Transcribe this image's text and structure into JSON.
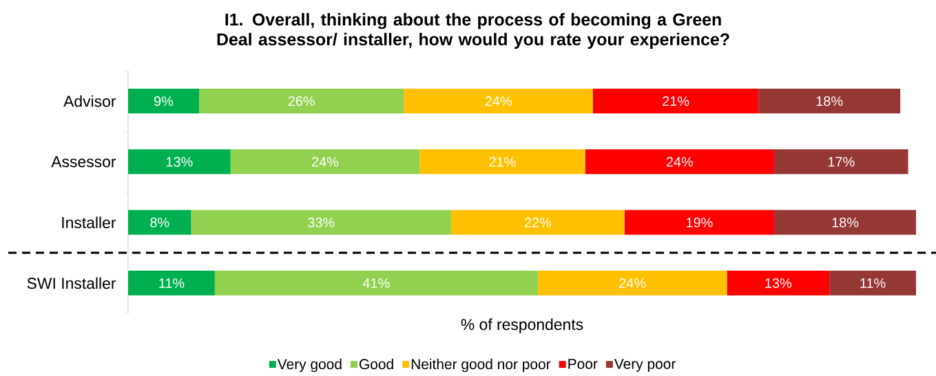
{
  "chart_data": {
    "type": "bar",
    "orientation": "horizontal",
    "stacked": true,
    "title": "I1. Overall, thinking about the process of becoming a Green Deal assessor/ installer, how would you rate your experience?",
    "xlabel": "% of respondents",
    "categories": [
      "Advisor",
      "Assessor",
      "Installer",
      "SWI Installer"
    ],
    "xlim": [
      0,
      100
    ],
    "legend": "bottom",
    "series": [
      {
        "name": "Very good",
        "color": "#00b050",
        "values": [
          9,
          13,
          8,
          11
        ],
        "value_labels": [
          "9%",
          "13%",
          "8%",
          "11%"
        ]
      },
      {
        "name": "Good",
        "color": "#92d050",
        "values": [
          26,
          24,
          33,
          41
        ],
        "value_labels": [
          "26%",
          "24%",
          "33%",
          "41%"
        ]
      },
      {
        "name": "Neither good nor poor",
        "color": "#ffc000",
        "values": [
          24,
          21,
          22,
          24
        ],
        "value_labels": [
          "24%",
          "21%",
          "22%",
          "24%"
        ]
      },
      {
        "name": "Poor",
        "color": "#ff0000",
        "values": [
          21,
          24,
          19,
          13
        ],
        "value_labels": [
          "21%",
          "24%",
          "19%",
          "13%"
        ]
      },
      {
        "name": "Very poor",
        "color": "#953735",
        "values": [
          18,
          17,
          18,
          11
        ],
        "value_labels": [
          "18%",
          "17%",
          "18%",
          "11%"
        ]
      }
    ]
  }
}
